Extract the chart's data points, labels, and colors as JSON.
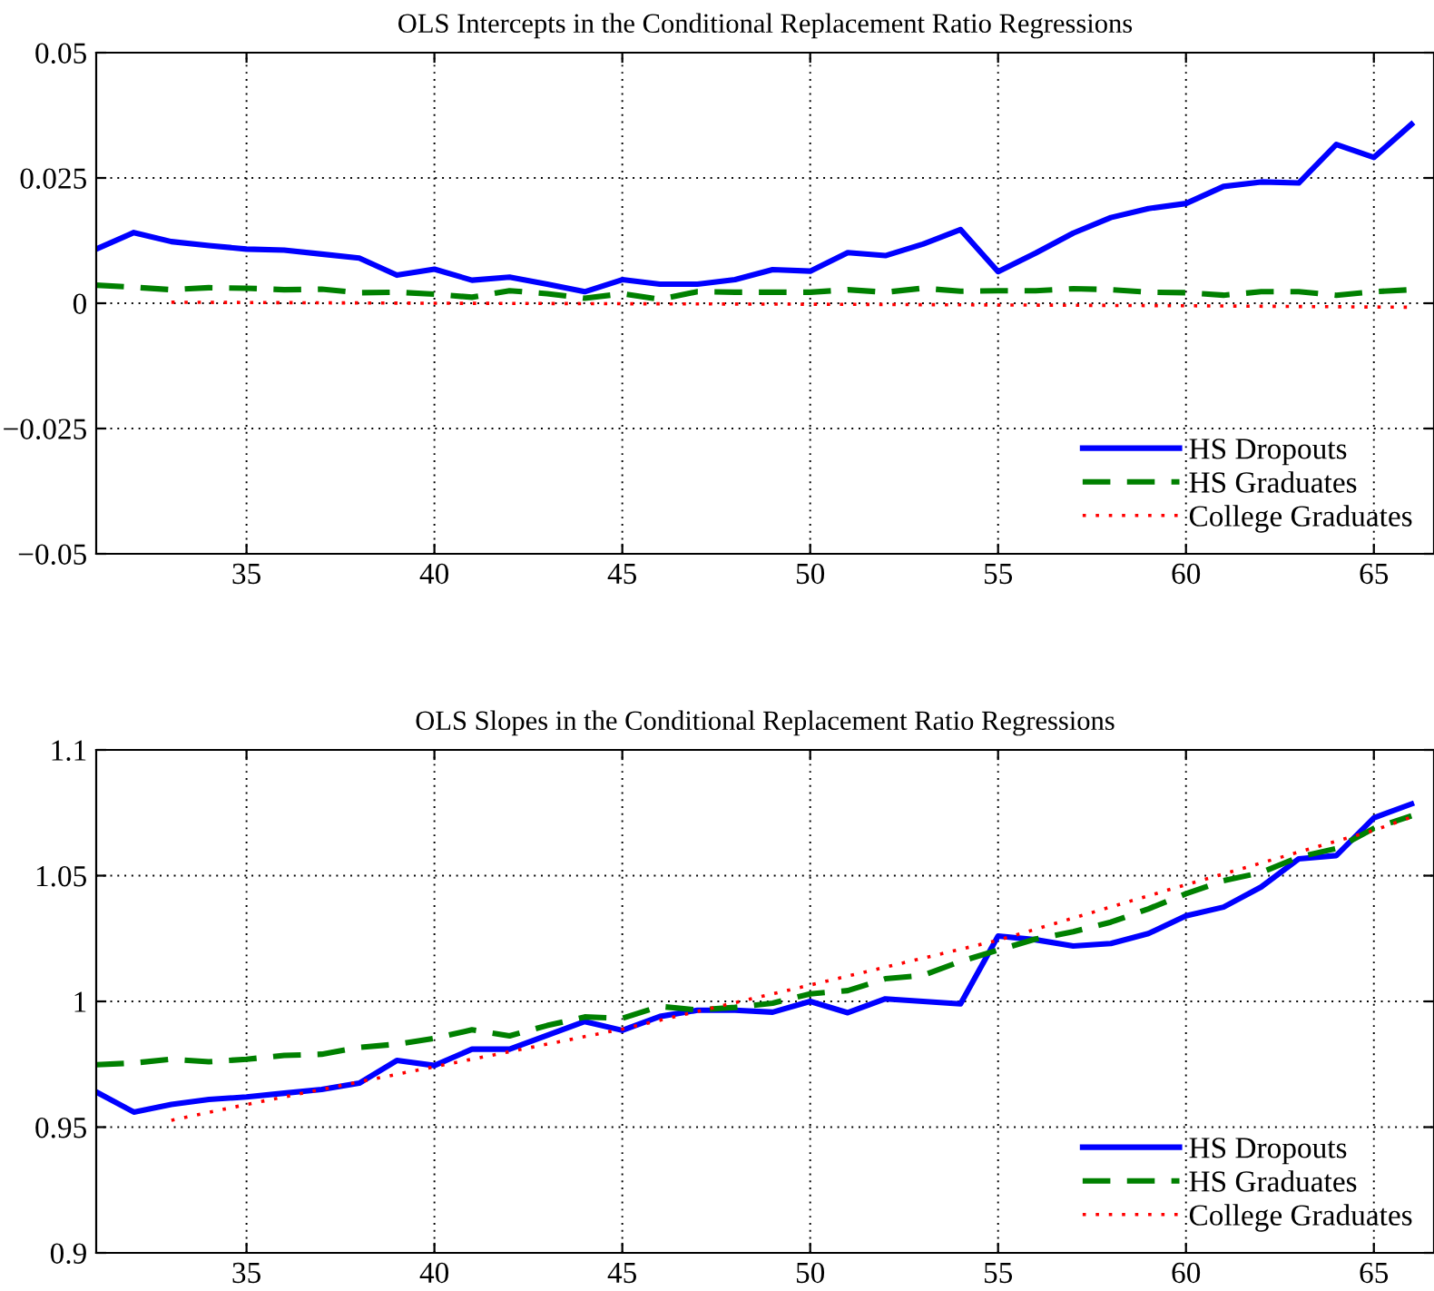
{
  "chart_data": [
    {
      "type": "line",
      "title": "OLS Intercepts in the Conditional Replacement Ratio Regressions",
      "xlim": [
        31,
        66.6
      ],
      "xticks": [
        35,
        40,
        45,
        50,
        55,
        60,
        65
      ],
      "ylim": [
        -0.05,
        0.05
      ],
      "yticks": [
        {
          "value": -0.05,
          "label": "−0.05"
        },
        {
          "value": -0.025,
          "label": "−0.025"
        },
        0,
        0.025,
        0.05
      ],
      "grid": true,
      "legend": "bottom right",
      "x": [
        31,
        32,
        33,
        34,
        35,
        36,
        37,
        38,
        39,
        40,
        41,
        42,
        43,
        44,
        45,
        46,
        47,
        48,
        49,
        50,
        51,
        52,
        53,
        54,
        55,
        56,
        57,
        58,
        59,
        60,
        61,
        62,
        63,
        64,
        65,
        66
      ],
      "series": [
        {
          "name": "HS Dropouts",
          "color": "#0000ff",
          "line_style": "solid",
          "values": [
            0.0108,
            0.0141,
            0.0123,
            0.0115,
            0.0108,
            0.0106,
            0.0098,
            0.009,
            0.0056,
            0.0068,
            0.0046,
            0.0052,
            0.0038,
            0.0023,
            0.0047,
            0.0038,
            0.0038,
            0.0047,
            0.0067,
            0.0064,
            0.0101,
            0.0095,
            0.0118,
            0.0147,
            0.0063,
            0.01,
            0.014,
            0.0171,
            0.0189,
            0.0199,
            0.0233,
            0.0242,
            0.024,
            0.0317,
            0.0291,
            0.0357
          ]
        },
        {
          "name": "HS Graduates",
          "color": "#008000",
          "line_style": "dashed",
          "values": [
            0.0036,
            0.0032,
            0.0027,
            0.0031,
            0.003,
            0.0027,
            0.0028,
            0.0021,
            0.0022,
            0.0018,
            0.0012,
            0.0025,
            0.0019,
            0.001,
            0.0019,
            0.0008,
            0.0023,
            0.0022,
            0.0022,
            0.0022,
            0.0027,
            0.0022,
            0.003,
            0.0024,
            0.0025,
            0.0025,
            0.0029,
            0.0027,
            0.0022,
            0.0021,
            0.0016,
            0.0023,
            0.0023,
            0.0016,
            0.0023,
            0.0027
          ]
        },
        {
          "name": "College Graduates",
          "color": "#ff0000",
          "line_style": "dotted",
          "x": [
            33,
            40,
            50,
            60,
            66
          ],
          "values": [
            0.0002,
            0.0,
            -0.0002,
            -0.0005,
            -0.0008
          ]
        }
      ]
    },
    {
      "type": "line",
      "title": "OLS Slopes in the Conditional Replacement Ratio Regressions",
      "xlim": [
        31,
        66.6
      ],
      "xticks": [
        35,
        40,
        45,
        50,
        55,
        60,
        65
      ],
      "ylim": [
        0.9,
        1.1
      ],
      "yticks": [
        0.9,
        0.95,
        1,
        1.05,
        1.1
      ],
      "grid": true,
      "legend": "bottom right",
      "x": [
        31,
        32,
        33,
        34,
        35,
        36,
        37,
        38,
        39,
        40,
        41,
        42,
        43,
        44,
        45,
        46,
        47,
        48,
        49,
        50,
        51,
        52,
        53,
        54,
        55,
        56,
        57,
        58,
        59,
        60,
        61,
        62,
        63,
        64,
        65,
        66
      ],
      "series": [
        {
          "name": "HS Dropouts",
          "color": "#0000ff",
          "line_style": "solid",
          "values": [
            0.964,
            0.956,
            0.959,
            0.961,
            0.962,
            0.9635,
            0.965,
            0.9675,
            0.9765,
            0.9745,
            0.981,
            0.981,
            0.9865,
            0.992,
            0.9885,
            0.994,
            0.9965,
            0.9965,
            0.9957,
            1.0,
            0.9955,
            1.001,
            1.0,
            0.999,
            1.026,
            1.0245,
            1.022,
            1.023,
            1.027,
            1.034,
            1.0375,
            1.0455,
            1.0567,
            1.058,
            1.073,
            1.0785
          ]
        },
        {
          "name": "HS Graduates",
          "color": "#008000",
          "line_style": "dashed",
          "values": [
            0.9748,
            0.9755,
            0.977,
            0.976,
            0.977,
            0.9785,
            0.979,
            0.9817,
            0.983,
            0.9853,
            0.9887,
            0.9863,
            0.9904,
            0.9938,
            0.9933,
            0.998,
            0.9966,
            0.9976,
            0.9993,
            1.003,
            1.0043,
            1.009,
            1.0103,
            1.0159,
            1.0204,
            1.0248,
            1.0277,
            1.0315,
            1.0368,
            1.0428,
            1.048,
            1.0512,
            1.0574,
            1.0608,
            1.0688,
            1.0738
          ]
        },
        {
          "name": "College Graduates",
          "color": "#ff0000",
          "line_style": "dotted",
          "x": [
            33,
            35,
            40,
            45,
            50,
            55,
            60,
            65,
            66
          ],
          "values": [
            0.9527,
            0.959,
            0.974,
            0.989,
            1.0065,
            1.0243,
            1.0464,
            1.068,
            1.0733
          ]
        }
      ]
    }
  ]
}
